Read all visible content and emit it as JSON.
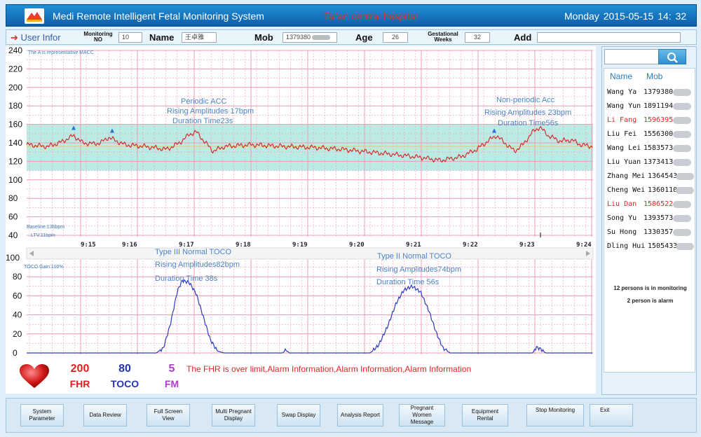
{
  "header": {
    "title": "Medi Remote Intelligent Fetal Monitoring System",
    "hospital": "Tai'an central hospital",
    "datetime": "Monday 2015-05-15 14: 32"
  },
  "infobar": {
    "user_infor": "User Infor",
    "monitoring_no_label": "Monitoring NO",
    "monitoring_no": "10",
    "name_label": "Name",
    "name": "王卓雅",
    "mob_label": "Mob",
    "mob": "1379380",
    "age_label": "Age",
    "age": "26",
    "gest_label": "Gestational Weeks",
    "gest": "32",
    "add_label": "Add",
    "add": ""
  },
  "chart": {
    "fhr_y_ticks": [
      "240",
      "220",
      "200",
      "180",
      "160",
      "140",
      "120",
      "100",
      "80",
      "60",
      "40"
    ],
    "toco_y_ticks": [
      "100",
      "80",
      "60",
      "40",
      "20",
      "0"
    ],
    "time_labels": [
      "9:15",
      "9:16",
      "9:17",
      "9:18",
      "9:19",
      "9:20",
      "9:21",
      "9:22",
      "9:23",
      "9:24"
    ],
    "macc_note": "The A is representative MACC",
    "baseline": "Baseline:136bpm",
    "ltv": "LTV:11bpm",
    "toco_gain": "TOCO Gain:100%",
    "annotations": [
      {
        "id": "a1",
        "lines": [
          "Periodic ACC",
          "Rising Amplitudes 17bpm",
          "Duration Time23s"
        ]
      },
      {
        "id": "a2",
        "lines": [
          "Non-periodic Acc",
          "Rising Amplitudes 23bpm",
          "Duration Time56s"
        ]
      },
      {
        "id": "a3",
        "lines": [
          "Type III Normal TOCO",
          "Rising Amplitudes82bpm",
          "Duration Time 38s"
        ]
      },
      {
        "id": "a4",
        "lines": [
          "Type II  Normal TOCO",
          "Rising Amplitudes74bpm",
          "Duration Time  56s"
        ]
      }
    ],
    "colors": {
      "fhr": "#d42020",
      "toco": "#2a3cc0",
      "band": "#a6e3db",
      "grid": "#ef9bb0"
    }
  },
  "status": {
    "fhr_value": "200",
    "fhr_label": "FHR",
    "toco_value": "80",
    "toco_label": "TOCO",
    "fm_value": "5",
    "fm_label": "FM",
    "alarm": "The FHR is over limit,Alarm Information,Alarm Information,Alarm Information"
  },
  "sidebar": {
    "name_header": "Name",
    "mob_header": "Mob",
    "patients": [
      {
        "name": "Wang Ya",
        "mob": "1379380",
        "alarm": false
      },
      {
        "name": "Wang Yun",
        "mob": "1891194",
        "alarm": false
      },
      {
        "name": "Li Fang",
        "mob": "1596395",
        "alarm": true
      },
      {
        "name": "Liu Fei",
        "mob": "1556300",
        "alarm": false
      },
      {
        "name": "Wang Lei",
        "mob": "1583573",
        "alarm": false
      },
      {
        "name": "Liu Yuan",
        "mob": "1373413",
        "alarm": false
      },
      {
        "name": "Zhang Mei",
        "mob": "1364543",
        "alarm": false
      },
      {
        "name": "Cheng Wei",
        "mob": "1360110",
        "alarm": false
      },
      {
        "name": "Liu Dan",
        "mob": "1586522",
        "alarm": true
      },
      {
        "name": "Song Yu",
        "mob": "1393573",
        "alarm": false
      },
      {
        "name": "Su Hong",
        "mob": "1330357",
        "alarm": false
      },
      {
        "name": "Dling Hui",
        "mob": "1505433",
        "alarm": false
      }
    ],
    "monitoring_summary": "12 persons is in monitoring",
    "alarm_summary": "2 person is alarm"
  },
  "footer": {
    "buttons": [
      "System Parameter",
      "Data Review",
      "Full Screen View",
      "Multi Pregnant Display",
      "Swap Display",
      "Analysis Report",
      "Pregnant Women Message",
      "Equipment Rental",
      "Stop Monitoring",
      "Exit"
    ]
  }
}
